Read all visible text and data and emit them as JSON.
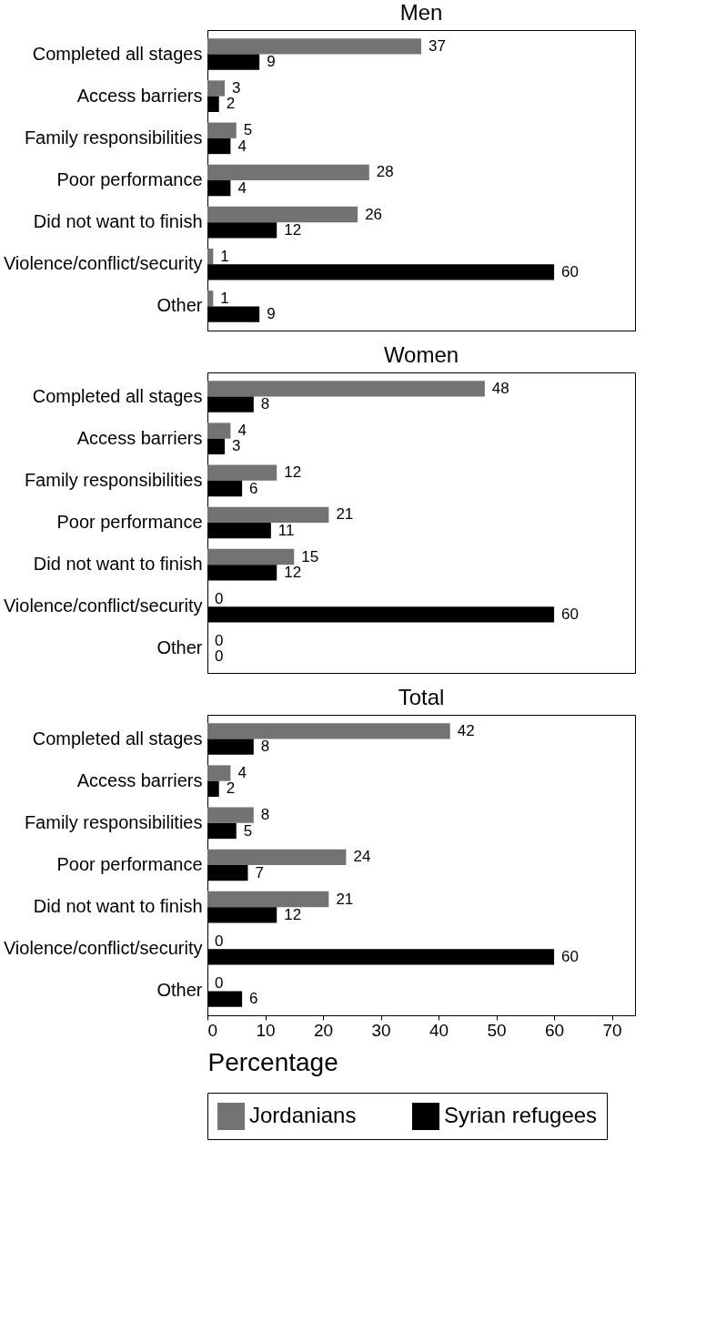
{
  "chart_data": [
    {
      "type": "bar",
      "orientation": "horizontal",
      "title": "Men",
      "categories": [
        "Completed all stages",
        "Access barriers",
        "Family responsibilities",
        "Poor performance",
        "Did not want to finish",
        "Violence/conflict/security",
        "Other"
      ],
      "series": [
        {
          "name": "Jordanians",
          "color": "#737373",
          "values": [
            37,
            3,
            5,
            28,
            26,
            1,
            1
          ]
        },
        {
          "name": "Syrian refugees",
          "color": "#000000",
          "values": [
            9,
            2,
            4,
            4,
            12,
            60,
            9
          ]
        }
      ],
      "xlim": [
        0,
        74
      ],
      "xticks": [
        0,
        10,
        20,
        30,
        40,
        50,
        60,
        70
      ],
      "data_labels": true,
      "tick_labels": "y",
      "legend": "bottom"
    },
    {
      "type": "bar",
      "orientation": "horizontal",
      "title": "Women",
      "categories": [
        "Completed all stages",
        "Access barriers",
        "Family responsibilities",
        "Poor performance",
        "Did not want to finish",
        "Violence/conflict/security",
        "Other"
      ],
      "series": [
        {
          "name": "Jordanians",
          "color": "#737373",
          "values": [
            48,
            4,
            12,
            21,
            15,
            0,
            0
          ]
        },
        {
          "name": "Syrian refugees",
          "color": "#000000",
          "values": [
            8,
            3,
            6,
            11,
            12,
            60,
            0
          ]
        }
      ],
      "xlim": [
        0,
        74
      ],
      "xticks": [
        0,
        10,
        20,
        30,
        40,
        50,
        60,
        70
      ],
      "data_labels": true,
      "tick_labels": "y",
      "legend": "bottom"
    },
    {
      "type": "bar",
      "orientation": "horizontal",
      "title": "Total",
      "xlabel": "Percentage",
      "categories": [
        "Completed all stages",
        "Access barriers",
        "Family responsibilities",
        "Poor performance",
        "Did not want to finish",
        "Violence/conflict/security",
        "Other"
      ],
      "series": [
        {
          "name": "Jordanians",
          "color": "#737373",
          "values": [
            42,
            4,
            8,
            24,
            21,
            0,
            0
          ]
        },
        {
          "name": "Syrian refugees",
          "color": "#000000",
          "values": [
            8,
            2,
            5,
            7,
            12,
            60,
            6
          ]
        }
      ],
      "xlim": [
        0,
        74
      ],
      "xticks": [
        0,
        10,
        20,
        30,
        40,
        50,
        60,
        70
      ],
      "data_labels": true,
      "legend": "bottom"
    }
  ]
}
